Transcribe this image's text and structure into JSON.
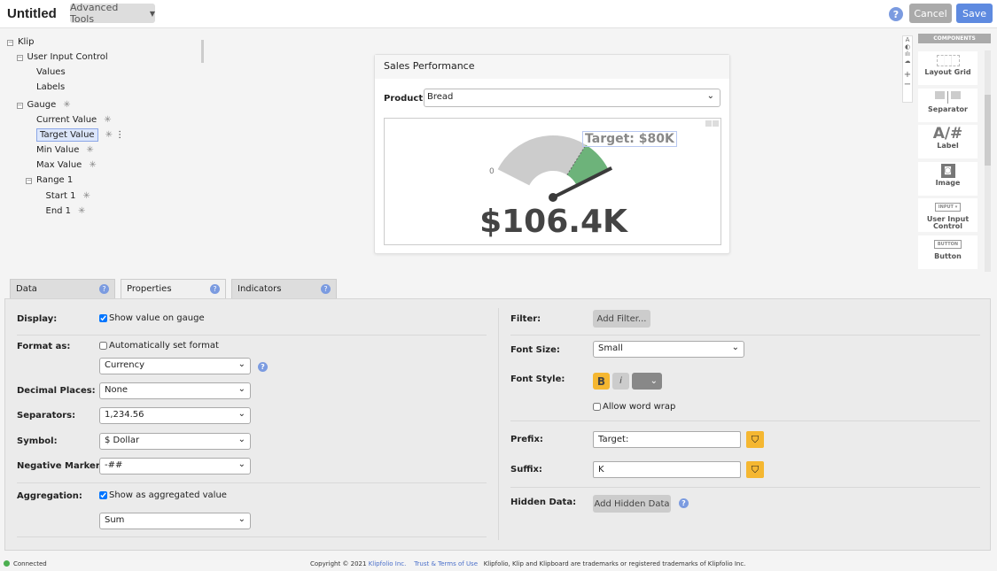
{
  "header": {
    "title": "Untitled",
    "advanced_tools": "Advanced Tools",
    "help": "?",
    "cancel": "Cancel",
    "save": "Save"
  },
  "tree": [
    {
      "label": "Klip",
      "toggle": "⊟",
      "asterisk": false
    },
    {
      "label": "User Input Control",
      "toggle": "⊟",
      "asterisk": false
    },
    {
      "label": "Values",
      "asterisk": false
    },
    {
      "label": "Labels",
      "asterisk": false
    },
    {
      "label": "Gauge",
      "toggle": "⊟",
      "asterisk": true
    },
    {
      "label": "Current Value",
      "asterisk": true
    },
    {
      "label": "Target Value",
      "asterisk": true,
      "selected": true
    },
    {
      "label": "Min Value",
      "asterisk": true
    },
    {
      "label": "Max Value",
      "asterisk": true
    },
    {
      "label": "Range 1",
      "toggle": "⊟",
      "asterisk": false
    },
    {
      "label": "Start 1",
      "asterisk": true
    },
    {
      "label": "End 1",
      "asterisk": true
    }
  ],
  "klip": {
    "title": "Sales Performance",
    "product_label": "Product:",
    "product_value": "Bread",
    "gauge": {
      "min_label": "0",
      "target_label": "Target: $80K",
      "value_label": "$106.4K",
      "current": 106.4,
      "target": 80,
      "colors": {
        "base": "#cccccc",
        "range": "#6db37a",
        "needle": "#3a3a3a"
      }
    }
  },
  "components": {
    "header": "COMPONENTS",
    "items": [
      {
        "label": "Layout Grid",
        "icon": "layout-grid-icon"
      },
      {
        "label": "Separator",
        "icon": "separator-icon"
      },
      {
        "label": "Label",
        "icon": "label-icon",
        "glyph": "A/#"
      },
      {
        "label": "Image",
        "icon": "image-icon"
      },
      {
        "label": "User Input Control",
        "icon": "input-icon",
        "glyph": "INPUT ▾"
      },
      {
        "label": "Button",
        "icon": "button-icon",
        "glyph": "BUTTON"
      }
    ]
  },
  "tabs": [
    {
      "label": "Data"
    },
    {
      "label": "Properties",
      "active": true
    },
    {
      "label": "Indicators"
    }
  ],
  "props": {
    "display_label": "Display:",
    "show_value": "Show value on gauge",
    "format_label": "Format as:",
    "auto_format": "Automatically set format",
    "format_value": "Currency",
    "decimal_label": "Decimal Places:",
    "decimal_value": "None",
    "separators_label": "Separators:",
    "separators_value": "1,234.56",
    "symbol_label": "Symbol:",
    "symbol_value": "$ Dollar",
    "negative_label": "Negative Marker:",
    "negative_value": "-##",
    "aggregation_label": "Aggregation:",
    "show_aggregated": "Show as aggregated value",
    "aggregation_value": "Sum",
    "filter_label": "Filter:",
    "add_filter": "Add Filter...",
    "font_size_label": "Font Size:",
    "font_size_value": "Small",
    "font_style_label": "Font Style:",
    "bold": "B",
    "italic": "i",
    "word_wrap": "Allow word wrap",
    "prefix_label": "Prefix:",
    "prefix_value": "Target:",
    "suffix_label": "Suffix:",
    "suffix_value": "K",
    "hidden_label": "Hidden Data:",
    "add_hidden": "Add Hidden Data"
  },
  "footer": {
    "status": "Connected",
    "copyright": "Copyright © 2021",
    "company": "Klipfolio Inc.",
    "terms": "Trust & Terms of Use",
    "trademark": "Klipfolio, Klip and Klipboard are trademarks or registered trademarks of Klipfolio Inc.",
    "status_color": "#4caf50"
  }
}
